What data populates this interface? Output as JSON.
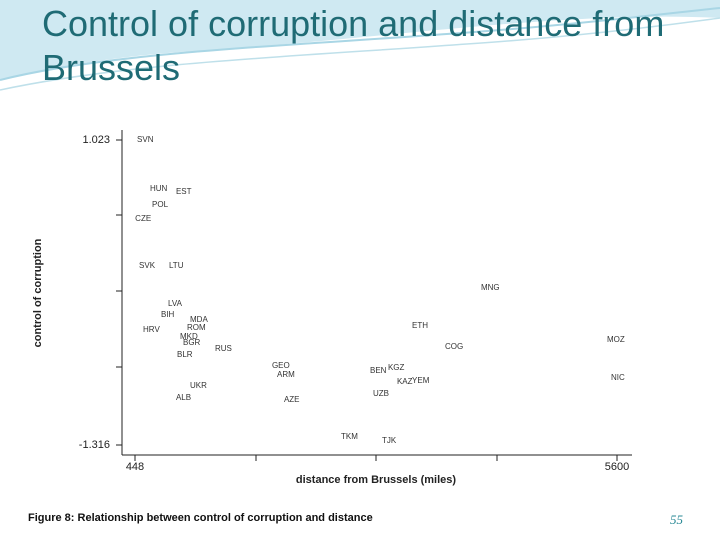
{
  "chart_data": {
    "type": "scatter",
    "title": "Control of corruption and distance from Brussels",
    "xlabel": "distance from Brussels (miles)",
    "ylabel": "control of corruption",
    "caption": "Figure 8:  Relationship between control of corruption and distance",
    "labels": [
      "SVN",
      "HUN",
      "EST",
      "POL",
      "CZE",
      "SVK",
      "LTU",
      "MNG",
      "LVA",
      "BIH",
      "MDA",
      "ROM",
      "HRV",
      "MKD",
      "BGR",
      "ETH",
      "MOZ",
      "COG",
      "RUS",
      "BLR",
      "GEO",
      "ARM",
      "BEN",
      "KGZ",
      "KAZ",
      "YEM",
      "NIC",
      "UKR",
      "ALB",
      "UZB",
      "AZE",
      "TKM",
      "TJK"
    ],
    "x": [
      470,
      608,
      886,
      630,
      450,
      491,
      811,
      4146,
      801,
      726,
      1036,
      1004,
      534,
      929,
      961,
      3409,
      5493,
      3762,
      1303,
      897,
      1912,
      1966,
      2960,
      3152,
      3248,
      3409,
      5536,
      1036,
      886,
      2992,
      2040,
      2650,
      3088
    ],
    "values": [
      1.023,
      0.647,
      0.624,
      0.525,
      0.417,
      0.057,
      0.057,
      -0.112,
      -0.235,
      -0.319,
      -0.357,
      -0.419,
      -0.434,
      -0.488,
      -0.534,
      -0.403,
      -0.511,
      -0.564,
      -0.58,
      -0.626,
      -0.71,
      -0.779,
      -0.749,
      -0.726,
      -0.833,
      -0.825,
      -0.802,
      -0.864,
      -0.956,
      -0.925,
      -0.971,
      -1.255,
      -1.285
    ],
    "color": "#333333",
    "xlim": [
      448,
      5600
    ],
    "xticks": [
      448,
      5600
    ],
    "ylim": [
      -1.316,
      1.023
    ],
    "yticks": [
      1.023,
      -1.316
    ]
  },
  "page_number": "55"
}
